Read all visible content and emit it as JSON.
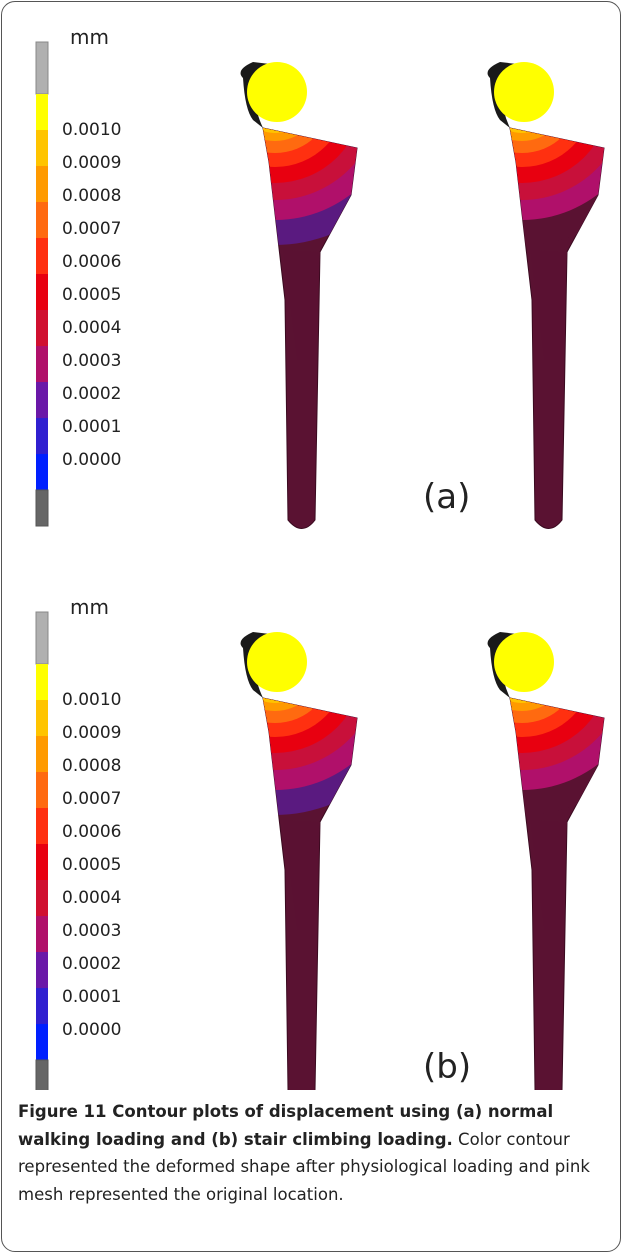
{
  "panels": [
    {
      "unit": "mm",
      "legend": [
        "0.0010",
        "0.0009",
        "0.0008",
        "0.0007",
        "0.0006",
        "0.0005",
        "0.0004",
        "0.0003",
        "0.0002",
        "0.0001",
        "0.0000"
      ],
      "label": "(a)"
    },
    {
      "unit": "mm",
      "legend": [
        "0.0010",
        "0.0009",
        "0.0008",
        "0.0007",
        "0.0006",
        "0.0005",
        "0.0004",
        "0.0003",
        "0.0002",
        "0.0001",
        "0.0000"
      ],
      "label": "(b)"
    }
  ],
  "caption": {
    "title": "Figure 11 Contour plots of displacement using (a) normal walking loading and (b) stair climbing loading.",
    "text": "Color contour represented the deformed shape after physiological loading and pink mesh represented the original location."
  }
}
